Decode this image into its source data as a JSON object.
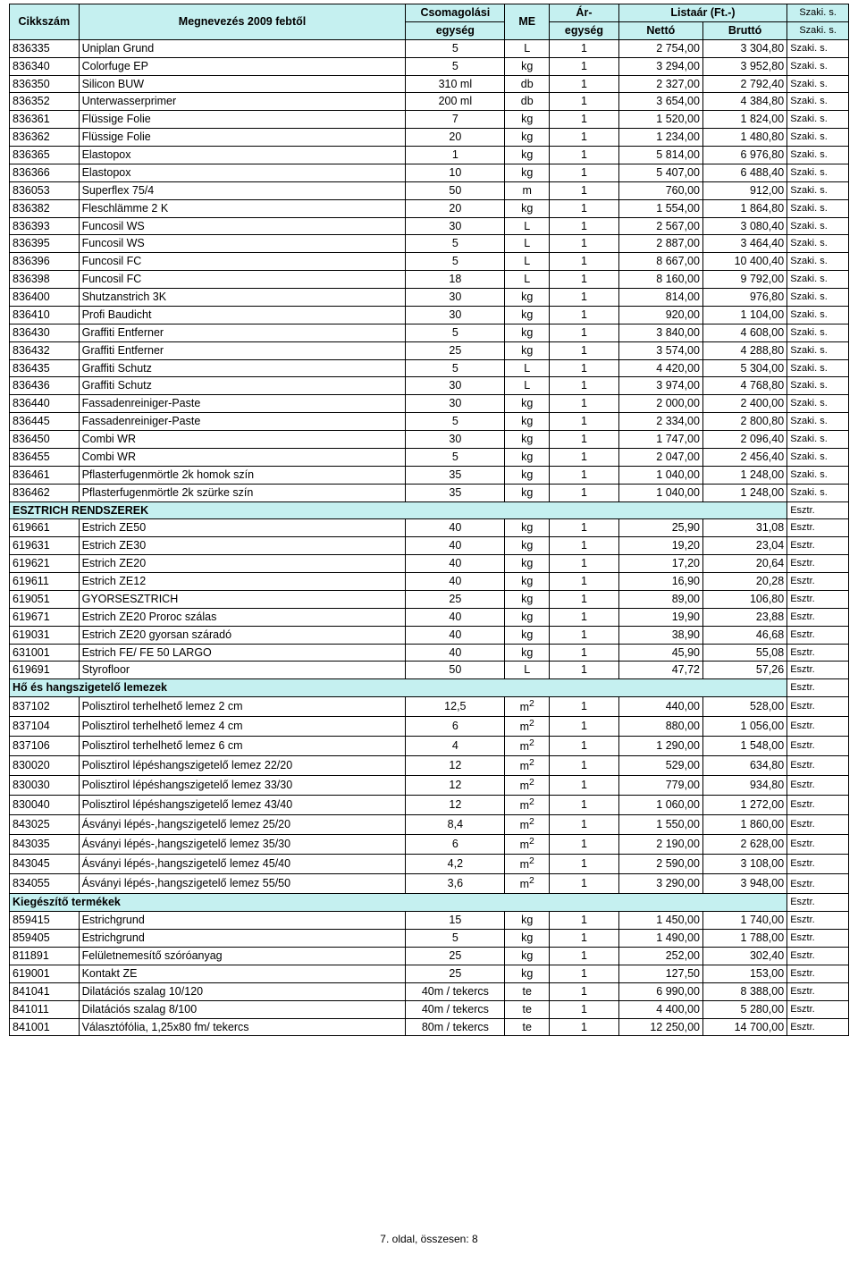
{
  "colors": {
    "header_bg": "#c5f0f0",
    "border": "#000000",
    "text": "#000000",
    "page_bg": "#ffffff"
  },
  "fonts": {
    "family": "Arial",
    "body_size_pt": 9,
    "header_weight": "bold"
  },
  "header": {
    "cikkszam": "Cikkszám",
    "megnevezes": "Megnevezés 2009 febtől",
    "csomagolasi": "Csomagolási",
    "egyseg": "egység",
    "me": "ME",
    "ar": "Ár-",
    "ar_egyseg": "egység",
    "listaar": "Listaár (Ft.-)",
    "netto": "Nettó",
    "brutto": "Bruttó",
    "szaki": "Szaki. s."
  },
  "sections": [
    {
      "title": null,
      "rows": [
        {
          "c": "836335",
          "m": "Uniplan Grund",
          "cs": "5",
          "me": "L",
          "ar": "1",
          "n": "2 754,00",
          "b": "3 304,80",
          "cat": "Szaki. s."
        },
        {
          "c": "836340",
          "m": "Colorfuge EP",
          "cs": "5",
          "me": "kg",
          "ar": "1",
          "n": "3 294,00",
          "b": "3 952,80",
          "cat": "Szaki. s."
        },
        {
          "c": "836350",
          "m": "Silicon BUW",
          "cs": "310 ml",
          "me": "db",
          "ar": "1",
          "n": "2 327,00",
          "b": "2 792,40",
          "cat": "Szaki. s."
        },
        {
          "c": "836352",
          "m": "Unterwasserprimer",
          "cs": "200 ml",
          "me": "db",
          "ar": "1",
          "n": "3 654,00",
          "b": "4 384,80",
          "cat": "Szaki. s."
        },
        {
          "c": "836361",
          "m": "Flüssige Folie",
          "cs": "7",
          "me": "kg",
          "ar": "1",
          "n": "1 520,00",
          "b": "1 824,00",
          "cat": "Szaki. s."
        },
        {
          "c": "836362",
          "m": "Flüssige Folie",
          "cs": "20",
          "me": "kg",
          "ar": "1",
          "n": "1 234,00",
          "b": "1 480,80",
          "cat": "Szaki. s."
        },
        {
          "c": "836365",
          "m": "Elastopox",
          "cs": "1",
          "me": "kg",
          "ar": "1",
          "n": "5 814,00",
          "b": "6 976,80",
          "cat": "Szaki. s."
        },
        {
          "c": "836366",
          "m": "Elastopox",
          "cs": "10",
          "me": "kg",
          "ar": "1",
          "n": "5 407,00",
          "b": "6 488,40",
          "cat": "Szaki. s."
        },
        {
          "c": "836053",
          "m": "Superflex 75/4",
          "cs": "50",
          "me": "m",
          "ar": "1",
          "n": "760,00",
          "b": "912,00",
          "cat": "Szaki. s."
        },
        {
          "c": "836382",
          "m": "Fleschlämme 2 K",
          "cs": "20",
          "me": "kg",
          "ar": "1",
          "n": "1 554,00",
          "b": "1 864,80",
          "cat": "Szaki. s."
        },
        {
          "c": "836393",
          "m": "Funcosil WS",
          "cs": "30",
          "me": "L",
          "ar": "1",
          "n": "2 567,00",
          "b": "3 080,40",
          "cat": "Szaki. s."
        },
        {
          "c": "836395",
          "m": "Funcosil WS",
          "cs": "5",
          "me": "L",
          "ar": "1",
          "n": "2 887,00",
          "b": "3 464,40",
          "cat": "Szaki. s."
        },
        {
          "c": "836396",
          "m": "Funcosil FC",
          "cs": "5",
          "me": "L",
          "ar": "1",
          "n": "8 667,00",
          "b": "10 400,40",
          "cat": "Szaki. s."
        },
        {
          "c": "836398",
          "m": "Funcosil FC",
          "cs": "18",
          "me": "L",
          "ar": "1",
          "n": "8 160,00",
          "b": "9 792,00",
          "cat": "Szaki. s."
        },
        {
          "c": "836400",
          "m": "Shutzanstrich 3K",
          "cs": "30",
          "me": "kg",
          "ar": "1",
          "n": "814,00",
          "b": "976,80",
          "cat": "Szaki. s."
        },
        {
          "c": "836410",
          "m": "Profi Baudicht",
          "cs": "30",
          "me": "kg",
          "ar": "1",
          "n": "920,00",
          "b": "1 104,00",
          "cat": "Szaki. s."
        },
        {
          "c": "836430",
          "m": "Graffiti Entferner",
          "cs": "5",
          "me": "kg",
          "ar": "1",
          "n": "3 840,00",
          "b": "4 608,00",
          "cat": "Szaki. s."
        },
        {
          "c": "836432",
          "m": "Graffiti Entferner",
          "cs": "25",
          "me": "kg",
          "ar": "1",
          "n": "3 574,00",
          "b": "4 288,80",
          "cat": "Szaki. s."
        },
        {
          "c": "836435",
          "m": "Graffiti Schutz",
          "cs": "5",
          "me": "L",
          "ar": "1",
          "n": "4 420,00",
          "b": "5 304,00",
          "cat": "Szaki. s."
        },
        {
          "c": "836436",
          "m": "Graffiti Schutz",
          "cs": "30",
          "me": "L",
          "ar": "1",
          "n": "3 974,00",
          "b": "4 768,80",
          "cat": "Szaki. s."
        },
        {
          "c": "836440",
          "m": "Fassadenreiniger-Paste",
          "cs": "30",
          "me": "kg",
          "ar": "1",
          "n": "2 000,00",
          "b": "2 400,00",
          "cat": "Szaki. s."
        },
        {
          "c": "836445",
          "m": "Fassadenreiniger-Paste",
          "cs": "5",
          "me": "kg",
          "ar": "1",
          "n": "2 334,00",
          "b": "2 800,80",
          "cat": "Szaki. s."
        },
        {
          "c": "836450",
          "m": "Combi WR",
          "cs": "30",
          "me": "kg",
          "ar": "1",
          "n": "1 747,00",
          "b": "2 096,40",
          "cat": "Szaki. s."
        },
        {
          "c": "836455",
          "m": "Combi WR",
          "cs": "5",
          "me": "kg",
          "ar": "1",
          "n": "2 047,00",
          "b": "2 456,40",
          "cat": "Szaki. s."
        },
        {
          "c": "836461",
          "m": "Pflasterfugenmörtle 2k homok szín",
          "cs": "35",
          "me": "kg",
          "ar": "1",
          "n": "1 040,00",
          "b": "1 248,00",
          "cat": "Szaki. s."
        },
        {
          "c": "836462",
          "m": "Pflasterfugenmörtle 2k szürke szín",
          "cs": "35",
          "me": "kg",
          "ar": "1",
          "n": "1 040,00",
          "b": "1 248,00",
          "cat": "Szaki. s."
        }
      ]
    },
    {
      "title": "ESZTRICH RENDSZEREK",
      "cat": "Esztr.",
      "rows": [
        {
          "c": "619661",
          "m": "Estrich ZE50",
          "cs": "40",
          "me": "kg",
          "ar": "1",
          "n": "25,90",
          "b": "31,08",
          "cat": "Esztr."
        },
        {
          "c": "619631",
          "m": "Estrich ZE30",
          "cs": "40",
          "me": "kg",
          "ar": "1",
          "n": "19,20",
          "b": "23,04",
          "cat": "Esztr."
        },
        {
          "c": "619621",
          "m": "Estrich ZE20",
          "cs": "40",
          "me": "kg",
          "ar": "1",
          "n": "17,20",
          "b": "20,64",
          "cat": "Esztr."
        },
        {
          "c": "619611",
          "m": "Estrich ZE12",
          "cs": "40",
          "me": "kg",
          "ar": "1",
          "n": "16,90",
          "b": "20,28",
          "cat": "Esztr."
        },
        {
          "c": "619051",
          "m": "GYORSESZTRICH",
          "cs": "25",
          "me": "kg",
          "ar": "1",
          "n": "89,00",
          "b": "106,80",
          "cat": "Esztr."
        },
        {
          "c": "619671",
          "m": "Estrich ZE20 Proroc szálas",
          "cs": "40",
          "me": "kg",
          "ar": "1",
          "n": "19,90",
          "b": "23,88",
          "cat": "Esztr."
        },
        {
          "c": "619031",
          "m": "Estrich ZE20 gyorsan száradó",
          "cs": "40",
          "me": "kg",
          "ar": "1",
          "n": "38,90",
          "b": "46,68",
          "cat": "Esztr."
        },
        {
          "c": "631001",
          "m": "Estrich FE/ FE 50 LARGO",
          "cs": "40",
          "me": "kg",
          "ar": "1",
          "n": "45,90",
          "b": "55,08",
          "cat": "Esztr."
        },
        {
          "c": "619691",
          "m": "Styrofloor",
          "cs": "50",
          "me": "L",
          "ar": "1",
          "n": "47,72",
          "b": "57,26",
          "cat": "Esztr."
        }
      ]
    },
    {
      "title": "Hő és hangszigetelő lemezek",
      "cat": "Esztr.",
      "rows": [
        {
          "c": "837102",
          "m": "Polisztirol terhelhető lemez 2 cm",
          "cs": "12,5",
          "me": "m²",
          "ar": "1",
          "n": "440,00",
          "b": "528,00",
          "cat": "Esztr."
        },
        {
          "c": "837104",
          "m": "Polisztirol terhelhető lemez 4 cm",
          "cs": "6",
          "me": "m²",
          "ar": "1",
          "n": "880,00",
          "b": "1 056,00",
          "cat": "Esztr."
        },
        {
          "c": "837106",
          "m": "Polisztirol terhelhető lemez 6 cm",
          "cs": "4",
          "me": "m²",
          "ar": "1",
          "n": "1 290,00",
          "b": "1 548,00",
          "cat": "Esztr."
        },
        {
          "c": "830020",
          "m": "Polisztirol lépéshangszigetelő lemez 22/20",
          "cs": "12",
          "me": "m²",
          "ar": "1",
          "n": "529,00",
          "b": "634,80",
          "cat": "Esztr."
        },
        {
          "c": "830030",
          "m": "Polisztirol lépéshangszigetelő lemez 33/30",
          "cs": "12",
          "me": "m²",
          "ar": "1",
          "n": "779,00",
          "b": "934,80",
          "cat": "Esztr."
        },
        {
          "c": "830040",
          "m": "Polisztirol lépéshangszigetelő lemez 43/40",
          "cs": "12",
          "me": "m²",
          "ar": "1",
          "n": "1 060,00",
          "b": "1 272,00",
          "cat": "Esztr."
        },
        {
          "c": "843025",
          "m": "Ásványi lépés-,hangszigetelő lemez 25/20",
          "cs": "8,4",
          "me": "m²",
          "ar": "1",
          "n": "1 550,00",
          "b": "1 860,00",
          "cat": "Esztr."
        },
        {
          "c": "843035",
          "m": "Ásványi lépés-,hangszigetelő lemez 35/30",
          "cs": "6",
          "me": "m²",
          "ar": "1",
          "n": "2 190,00",
          "b": "2 628,00",
          "cat": "Esztr."
        },
        {
          "c": "843045",
          "m": "Ásványi lépés-,hangszigetelő lemez 45/40",
          "cs": "4,2",
          "me": "m²",
          "ar": "1",
          "n": "2 590,00",
          "b": "3 108,00",
          "cat": "Esztr."
        },
        {
          "c": "834055",
          "m": "Ásványi lépés-,hangszigetelő lemez 55/50",
          "cs": "3,6",
          "me": "m²",
          "ar": "1",
          "n": "3 290,00",
          "b": "3 948,00",
          "cat": "Esztr."
        }
      ]
    },
    {
      "title": "Kiegészítő termékek",
      "cat": "Esztr.",
      "rows": [
        {
          "c": "859415",
          "m": "Estrichgrund",
          "cs": "15",
          "me": "kg",
          "ar": "1",
          "n": "1 450,00",
          "b": "1 740,00",
          "cat": "Esztr."
        },
        {
          "c": "859405",
          "m": "Estrichgrund",
          "cs": "5",
          "me": "kg",
          "ar": "1",
          "n": "1 490,00",
          "b": "1 788,00",
          "cat": "Esztr."
        },
        {
          "c": "811891",
          "m": "Felületnemesítő szóróanyag",
          "cs": "25",
          "me": "kg",
          "ar": "1",
          "n": "252,00",
          "b": "302,40",
          "cat": "Esztr."
        },
        {
          "c": "619001",
          "m": "Kontakt ZE",
          "cs": "25",
          "me": "kg",
          "ar": "1",
          "n": "127,50",
          "b": "153,00",
          "cat": "Esztr."
        },
        {
          "c": "841041",
          "m": "Dilatációs szalag 10/120",
          "cs": "40m / tekercs",
          "me": "te",
          "ar": "1",
          "n": "6 990,00",
          "b": "8 388,00",
          "cat": "Esztr."
        },
        {
          "c": "841011",
          "m": "Dilatációs szalag  8/100",
          "cs": "40m / tekercs",
          "me": "te",
          "ar": "1",
          "n": "4 400,00",
          "b": "5 280,00",
          "cat": "Esztr."
        },
        {
          "c": "841001",
          "m": "Választófólia, 1,25x80 fm/ tekercs",
          "cs": "80m / tekercs",
          "me": "te",
          "ar": "1",
          "n": "12 250,00",
          "b": "14 700,00",
          "cat": "Esztr."
        }
      ]
    }
  ],
  "footer": "7. oldal, összesen: 8"
}
